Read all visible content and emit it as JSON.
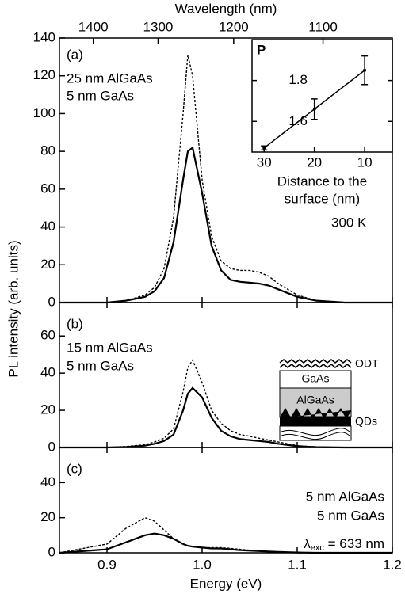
{
  "ylabel": "PL intensity (arb. units)",
  "chart_data": [
    {
      "type": "line",
      "panel_label": "(a)",
      "annotations": [
        "25 nm AlGaAs",
        "5 nm GaAs",
        "300 K"
      ],
      "x": [
        0.85,
        0.9,
        0.92,
        0.94,
        0.95,
        0.96,
        0.97,
        0.98,
        0.985,
        0.99,
        1.0,
        1.01,
        1.02,
        1.03,
        1.04,
        1.05,
        1.06,
        1.07,
        1.08,
        1.1,
        1.12,
        1.15,
        1.2
      ],
      "series": [
        {
          "color": "#000000",
          "line_style": "dashed",
          "values": [
            0,
            0,
            1,
            4,
            8,
            18,
            45,
            100,
            131,
            120,
            65,
            35,
            22,
            18,
            17,
            17,
            16,
            14,
            10,
            4,
            1,
            0,
            0
          ]
        },
        {
          "color": "#000000",
          "line_style": "solid",
          "values": [
            0,
            0,
            1,
            3,
            6,
            13,
            32,
            65,
            80,
            82,
            58,
            30,
            17,
            12,
            11,
            10.5,
            10,
            9,
            7,
            3,
            1,
            0,
            0
          ]
        }
      ],
      "xlim": [
        0.85,
        1.2
      ],
      "ylim": [
        0,
        140
      ],
      "yticks": [
        0,
        20,
        40,
        60,
        80,
        100,
        120,
        140
      ],
      "x2label": "Wavelength (nm)",
      "x2ticks": [
        1400,
        1300,
        1200,
        1100
      ]
    },
    {
      "type": "line",
      "panel_label": "(b)",
      "annotations": [
        "15 nm AlGaAs",
        "5 nm GaAs"
      ],
      "diagram_labels": [
        "ODT",
        "GaAs",
        "AlGaAs",
        "QDs"
      ],
      "x": [
        0.85,
        0.9,
        0.92,
        0.94,
        0.95,
        0.96,
        0.97,
        0.98,
        0.985,
        0.99,
        1.0,
        1.01,
        1.02,
        1.03,
        1.04,
        1.05,
        1.06,
        1.07,
        1.08,
        1.1,
        1.12,
        1.15,
        1.2
      ],
      "series": [
        {
          "color": "#000000",
          "line_style": "dashed",
          "values": [
            0,
            0,
            0.5,
            1.5,
            3,
            5,
            10,
            30,
            43,
            47,
            35,
            20,
            13,
            9,
            7,
            6,
            5,
            4,
            3,
            1,
            0.3,
            0,
            0
          ]
        },
        {
          "color": "#000000",
          "line_style": "solid",
          "values": [
            0,
            0,
            0.3,
            1,
            2,
            3.5,
            7,
            20,
            29,
            32,
            27,
            16,
            9,
            6,
            4.5,
            4,
            3.5,
            3,
            2,
            0.7,
            0.2,
            0,
            0
          ]
        }
      ],
      "xlim": [
        0.85,
        1.2
      ],
      "ylim": [
        0,
        78
      ],
      "yticks": [
        0,
        20,
        40,
        60
      ]
    },
    {
      "type": "line",
      "panel_label": "(c)",
      "annotations": [
        "5 nm AlGaAs",
        "5 nm GaAs"
      ],
      "excitation": {
        "symbol": "λ",
        "subscript": "exc",
        "text": " = 633 nm"
      },
      "x": [
        0.85,
        0.9,
        0.92,
        0.94,
        0.95,
        0.96,
        0.97,
        0.98,
        0.985,
        0.99,
        1.0,
        1.01,
        1.02,
        1.03,
        1.04,
        1.05,
        1.06,
        1.07,
        1.08,
        1.1,
        1.12,
        1.15,
        1.2
      ],
      "series": [
        {
          "color": "#000000",
          "line_style": "dashed",
          "values": [
            0,
            5,
            14,
            20,
            18,
            13,
            8,
            5,
            4,
            3.5,
            3,
            3,
            3,
            2.5,
            2,
            1.5,
            1,
            0.7,
            0.5,
            0.2,
            0,
            0,
            0
          ]
        },
        {
          "color": "#000000",
          "line_style": "solid",
          "values": [
            0,
            2,
            6,
            10,
            11,
            10,
            8,
            5,
            4,
            3.5,
            3,
            2.5,
            2.5,
            2,
            1.5,
            1.2,
            1,
            0.7,
            0.5,
            0.2,
            0,
            0,
            0
          ]
        }
      ],
      "xlim": [
        0.85,
        1.2
      ],
      "ylim": [
        0,
        60
      ],
      "yticks": [
        0,
        20,
        40
      ],
      "xlabel": "Energy (eV)",
      "xticks": [
        0.9,
        {
          "value": 1,
          "label": "1.0"
        },
        1.1,
        1.2
      ]
    },
    {
      "type": "errorbar",
      "ylabel": "P",
      "xlabel": [
        "Distance to the",
        "surface (nm)"
      ],
      "x": [
        30,
        20,
        10
      ],
      "values": [
        1.47,
        1.66,
        1.85
      ],
      "errors": [
        0.01,
        0.05,
        0.07
      ],
      "color": "#000000",
      "xlim": [
        32.4,
        4.5
      ],
      "ylim": [
        1.45,
        2.0
      ],
      "xticks": [
        30,
        20,
        10
      ],
      "yticks": [
        1.6,
        1.8
      ]
    }
  ]
}
